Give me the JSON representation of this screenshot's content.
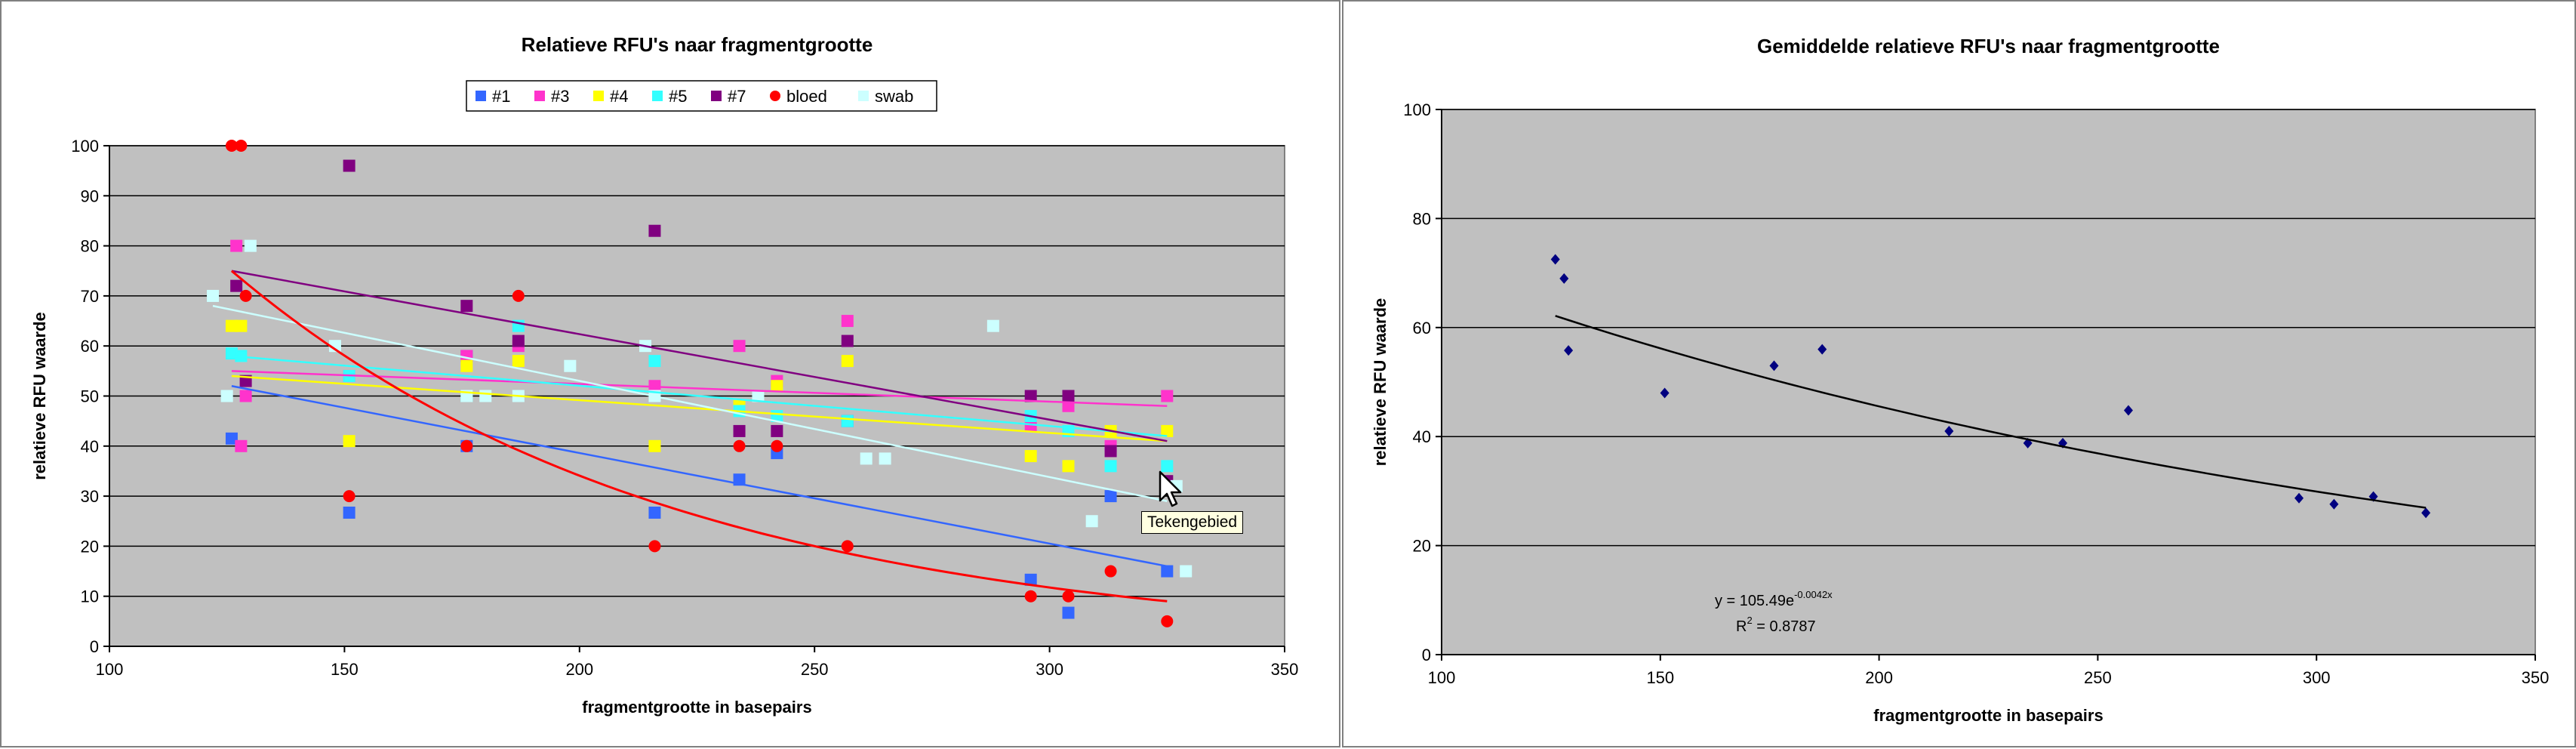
{
  "chart_data": [
    {
      "type": "scatter",
      "title": "Relatieve RFU's naar fragmentgrootte",
      "xlabel": "fragmentgrootte in basepairs",
      "ylabel": "relatieve RFU waarde",
      "xlim": [
        100,
        350
      ],
      "ylim": [
        0,
        100
      ],
      "xticks": [
        100,
        150,
        200,
        250,
        300,
        350
      ],
      "yticks": [
        0,
        10,
        20,
        30,
        40,
        50,
        60,
        70,
        80,
        90,
        100
      ],
      "grid": "horizontal",
      "legend_position": "top",
      "plot_background": "#c0c0c0",
      "series": [
        {
          "name": "#1",
          "marker": "square",
          "color": "#3366ff",
          "trend_color": "#3366ff",
          "trend": "linear",
          "points": [
            [
              126,
              41.5
            ],
            [
              151,
              26.7
            ],
            [
              176,
              40
            ],
            [
              176,
              58
            ],
            [
              216,
              26.7
            ],
            [
              234,
              33.3
            ],
            [
              242,
              38.6
            ],
            [
              257,
              45
            ],
            [
              296,
              13.3
            ],
            [
              304,
              6.7
            ],
            [
              313,
              30
            ],
            [
              325,
              15
            ]
          ]
        },
        {
          "name": "#3",
          "marker": "square",
          "color": "#ff33cc",
          "trend_color": "#ff33cc",
          "trend": "linear",
          "points": [
            [
              127,
              80
            ],
            [
              128,
              40
            ],
            [
              129,
              50
            ],
            [
              151,
              54
            ],
            [
              176,
              58
            ],
            [
              187,
              60
            ],
            [
              216,
              52
            ],
            [
              234,
              60
            ],
            [
              242,
              53
            ],
            [
              257,
              65
            ],
            [
              296,
              44
            ],
            [
              304,
              48
            ],
            [
              313,
              40
            ],
            [
              325,
              50
            ]
          ]
        },
        {
          "name": "#4",
          "marker": "square",
          "color": "#ffff00",
          "trend_color": "#ffff00",
          "trend": "linear",
          "points": [
            [
              126,
              64
            ],
            [
              128,
              64
            ],
            [
              151,
              41
            ],
            [
              176,
              56
            ],
            [
              187,
              57
            ],
            [
              216,
              40
            ],
            [
              234,
              48
            ],
            [
              242,
              52
            ],
            [
              257,
              57
            ],
            [
              296,
              38
            ],
            [
              304,
              36
            ],
            [
              313,
              43
            ],
            [
              325,
              43
            ]
          ]
        },
        {
          "name": "#5",
          "marker": "square",
          "color": "#33ffff",
          "trend_color": "#33ffff",
          "trend": "linear",
          "points": [
            [
              126,
              58.5
            ],
            [
              128,
              58
            ],
            [
              151,
              54
            ],
            [
              176,
              50
            ],
            [
              187,
              64
            ],
            [
              216,
              57
            ],
            [
              234,
              47
            ],
            [
              242,
              46
            ],
            [
              257,
              45
            ],
            [
              296,
              46
            ],
            [
              304,
              43
            ],
            [
              313,
              36
            ],
            [
              325,
              36
            ]
          ]
        },
        {
          "name": "#7",
          "marker": "square",
          "color": "#800080",
          "trend_color": "#800080",
          "trend": "linear",
          "points": [
            [
              127,
              72
            ],
            [
              129,
              53
            ],
            [
              151,
              96
            ],
            [
              176,
              68
            ],
            [
              187,
              61
            ],
            [
              216,
              83
            ],
            [
              234,
              43
            ],
            [
              242,
              43
            ],
            [
              257,
              61
            ],
            [
              296,
              50
            ],
            [
              304,
              50
            ],
            [
              313,
              39
            ],
            [
              325,
              33
            ]
          ]
        },
        {
          "name": "bloed",
          "marker": "circle",
          "color": "#ff0000",
          "trend_color": "#ff0000",
          "trend": "exponential",
          "points": [
            [
              126,
              100
            ],
            [
              128,
              100
            ],
            [
              129,
              70
            ],
            [
              151,
              30
            ],
            [
              176,
              40
            ],
            [
              187,
              70
            ],
            [
              216,
              20
            ],
            [
              234,
              40
            ],
            [
              242,
              40
            ],
            [
              257,
              20
            ],
            [
              296,
              10
            ],
            [
              304,
              10
            ],
            [
              313,
              15
            ],
            [
              325,
              5
            ]
          ]
        },
        {
          "name": "swab",
          "marker": "square",
          "color": "#ccffff",
          "trend_color": "#ccffff",
          "trend": "linear",
          "points": [
            [
              122,
              70
            ],
            [
              125,
              50
            ],
            [
              130,
              80
            ],
            [
              148,
              60
            ],
            [
              176,
              50
            ],
            [
              180,
              50
            ],
            [
              187,
              50
            ],
            [
              198,
              56
            ],
            [
              214,
              60
            ],
            [
              216,
              50
            ],
            [
              238,
              50
            ],
            [
              261,
              37.5
            ],
            [
              265,
              37.5
            ],
            [
              288,
              64
            ],
            [
              309,
              25
            ],
            [
              327,
              32
            ],
            [
              329,
              15
            ]
          ]
        }
      ],
      "trendlines": [
        {
          "series": "#1",
          "x": [
            126,
            325
          ],
          "y": [
            52,
            16
          ]
        },
        {
          "series": "#3",
          "x": [
            126,
            325
          ],
          "y": [
            55,
            48
          ]
        },
        {
          "series": "#4",
          "x": [
            126,
            325
          ],
          "y": [
            54,
            41
          ]
        },
        {
          "series": "#5",
          "x": [
            126,
            325
          ],
          "y": [
            58,
            42
          ]
        },
        {
          "series": "#7",
          "x": [
            126,
            325
          ],
          "y": [
            75,
            41
          ]
        },
        {
          "series": "swab",
          "x": [
            122,
            325
          ],
          "y": [
            68,
            29
          ]
        },
        {
          "series": "bloed",
          "x": [
            126,
            325
          ],
          "y": [
            75,
            9
          ],
          "kind": "exponential"
        }
      ]
    },
    {
      "type": "scatter",
      "title": "Gemiddelde relatieve RFU's naar fragmentgrootte",
      "xlabel": "fragmentgrootte in basepairs",
      "ylabel": "relatieve RFU waarde",
      "xlim": [
        100,
        350
      ],
      "ylim": [
        0,
        100
      ],
      "xticks": [
        100,
        150,
        200,
        250,
        300,
        350
      ],
      "yticks": [
        0,
        20,
        40,
        60,
        80,
        100
      ],
      "grid": "horizontal",
      "legend_position": "none",
      "plot_background": "#c0c0c0",
      "series": [
        {
          "name": "",
          "marker": "diamond",
          "color": "#000080",
          "points": [
            [
              126,
              72.5
            ],
            [
              128,
              69
            ],
            [
              129,
              55.8
            ],
            [
              151,
              48
            ],
            [
              176,
              53
            ],
            [
              187,
              56
            ],
            [
              216,
              41
            ],
            [
              234,
              38.8
            ],
            [
              242,
              38.8
            ],
            [
              257,
              44.8
            ],
            [
              296,
              28.7
            ],
            [
              304,
              27.6
            ],
            [
              313,
              29
            ],
            [
              325,
              26
            ]
          ]
        }
      ],
      "trendlines": [
        {
          "kind": "exponential",
          "a": 105.49,
          "b": -0.0042,
          "x": [
            126,
            325
          ]
        }
      ],
      "equation_line1": "y = 105.49e",
      "equation_exponent": "-0.0042x",
      "r2_prefix": "R",
      "r2_sup": "2",
      "r2_value": " = 0.8787"
    }
  ],
  "tooltip": {
    "label": "Tekengebied"
  }
}
